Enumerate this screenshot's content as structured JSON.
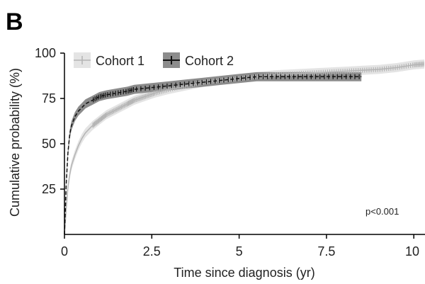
{
  "panel_label": "B",
  "colors": {
    "cohort1_line": "#b4b4b4",
    "cohort1_band": "#e4e4e4",
    "cohort2_line": "#111111",
    "cohort2_band": "#8c8c8c",
    "axis": "#000000"
  },
  "chart_data": {
    "type": "line",
    "title": "",
    "xlabel": "Time since diagnosis (yr)",
    "ylabel": "Cumulative probability (%)",
    "xlim": [
      0,
      10.3
    ],
    "ylim": [
      0,
      100
    ],
    "xticks": [
      0,
      2.5,
      5,
      7.5,
      10
    ],
    "xtick_labels": [
      "0",
      "2.5",
      "5",
      "7.5",
      "10"
    ],
    "yticks": [
      25,
      50,
      75,
      100
    ],
    "ytick_labels": [
      "25",
      "50",
      "75",
      "100"
    ],
    "legend_position": "top-left",
    "annotation": "p<0.001",
    "grid": false,
    "series": [
      {
        "name": "Cohort 1",
        "x": [
          0,
          0.05,
          0.1,
          0.15,
          0.2,
          0.3,
          0.4,
          0.5,
          0.6,
          0.7,
          0.8,
          1.0,
          1.2,
          1.5,
          1.8,
          2.0,
          2.3,
          2.6,
          3.0,
          3.5,
          4.0,
          4.5,
          5.0,
          5.5,
          6.0,
          6.5,
          7.0,
          7.5,
          8.0,
          8.5,
          9.0,
          9.5,
          10.0,
          10.3
        ],
        "y": [
          0,
          14,
          26,
          33,
          38,
          44,
          49,
          53,
          56,
          58,
          60,
          63,
          66,
          69,
          72,
          74,
          76,
          78,
          80,
          82,
          84,
          85,
          86,
          87,
          88,
          88.5,
          89,
          89.5,
          90,
          90.5,
          91,
          92,
          93.5,
          94
        ],
        "ci_halfwidth": 2.5
      },
      {
        "name": "Cohort 2",
        "x": [
          0,
          0.05,
          0.1,
          0.15,
          0.2,
          0.3,
          0.4,
          0.5,
          0.6,
          0.7,
          0.8,
          1.0,
          1.2,
          1.5,
          1.8,
          2.0,
          2.5,
          3.0,
          3.5,
          4.0,
          4.5,
          5.0,
          5.5,
          6.0,
          6.5,
          7.0,
          7.5,
          8.0,
          8.5
        ],
        "y": [
          0,
          28,
          45,
          55,
          60,
          65,
          68,
          70,
          72,
          73,
          74,
          76,
          77,
          78,
          79,
          80,
          81,
          82,
          83,
          84,
          85,
          86,
          87,
          87,
          87,
          87,
          87,
          87,
          87
        ],
        "ci_halfwidth": 2.5
      }
    ]
  }
}
